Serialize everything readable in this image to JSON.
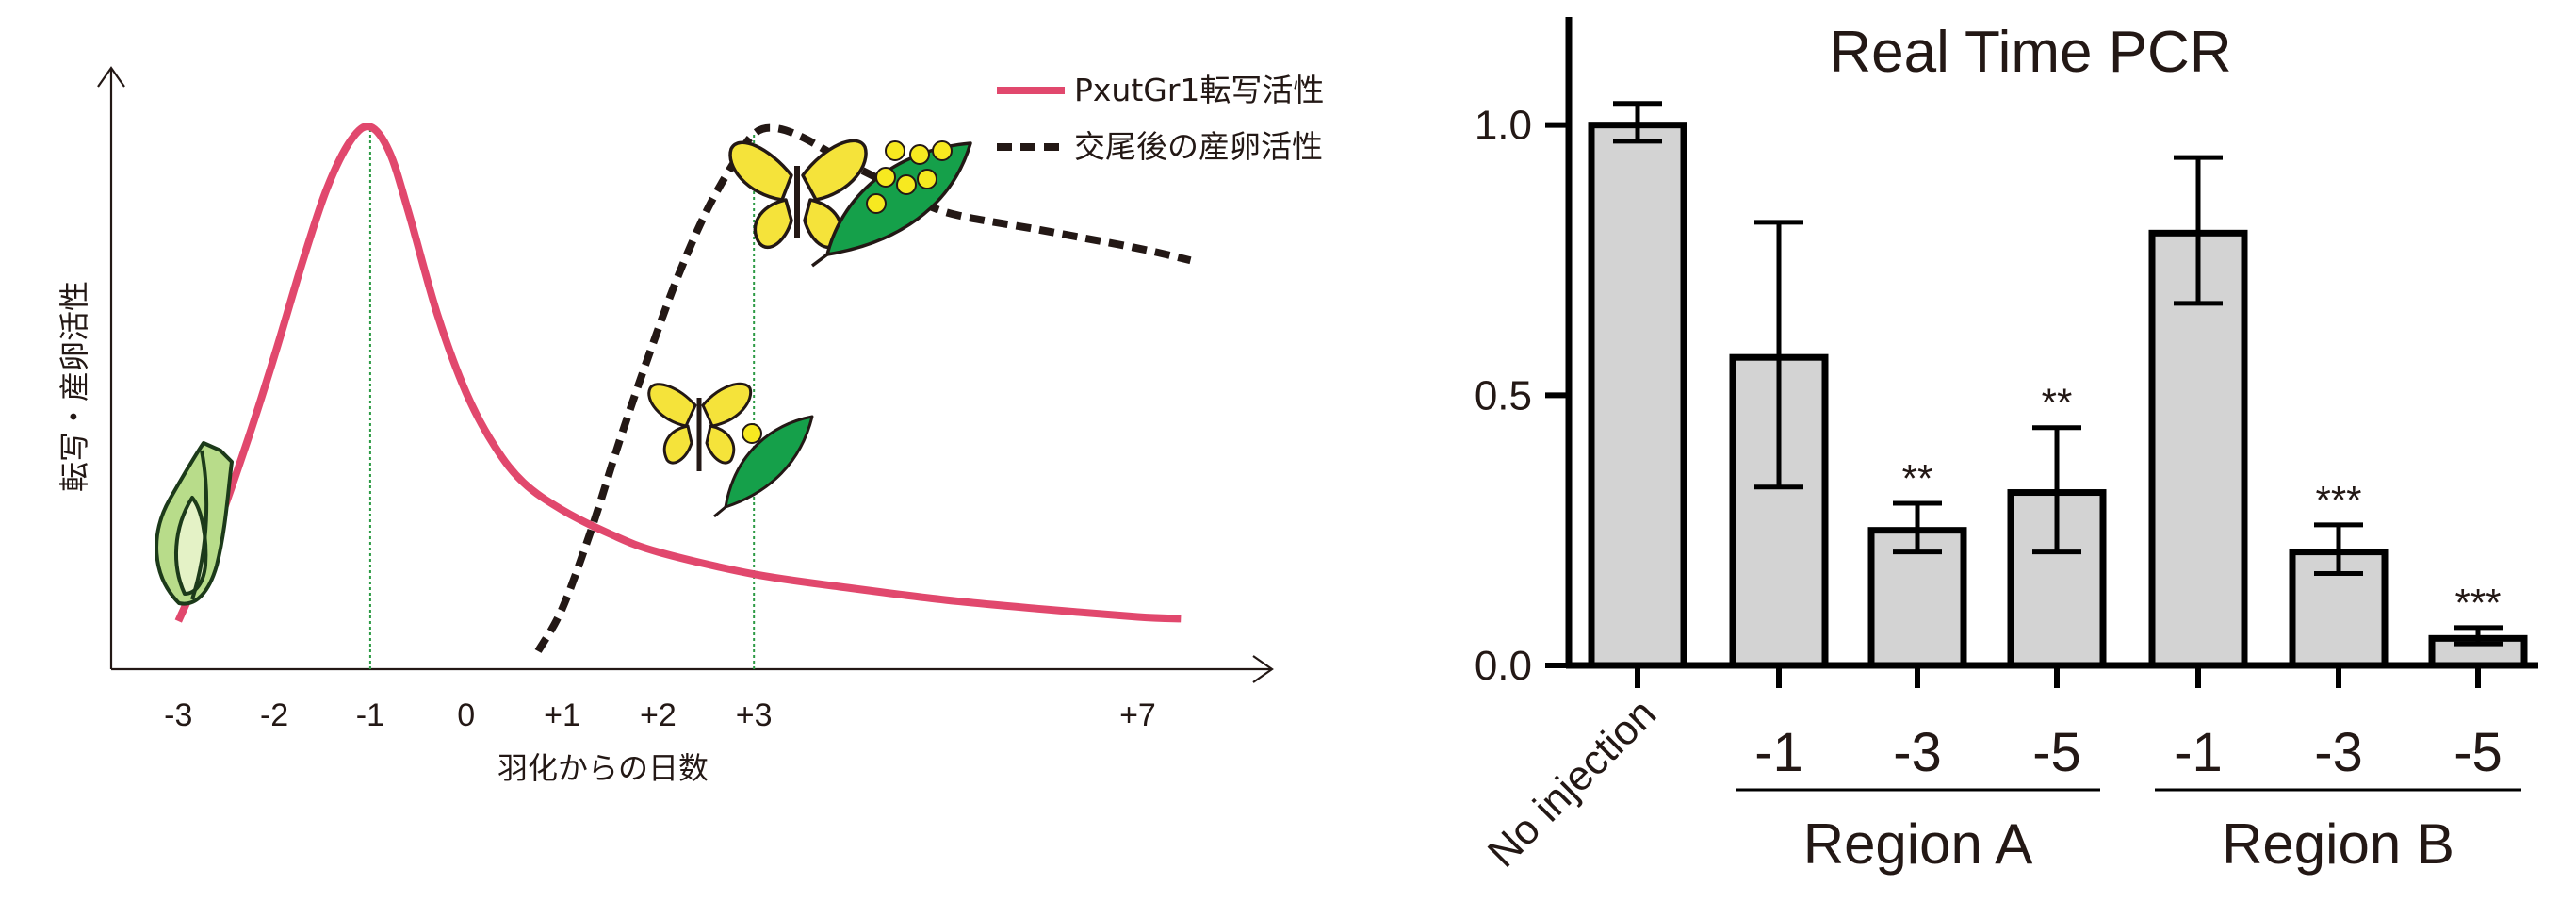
{
  "chart_data": [
    {
      "type": "line",
      "title": "",
      "xlabel": "羽化からの日数",
      "ylabel": "転写・産卵活性",
      "x_ticks": [
        "-3",
        "-2",
        "-1",
        "0",
        "+1",
        "+2",
        "+3",
        "+7"
      ],
      "x_tick_values": [
        -3,
        -2,
        -1,
        0,
        1,
        2,
        3,
        7
      ],
      "y_ticks": [],
      "xlim": [
        -3.7,
        8.4
      ],
      "ylim": [
        0,
        10
      ],
      "legend_position": "top-right",
      "series": [
        {
          "name": "PxutGr1転写活性",
          "style": "solid",
          "color": "#e1486d",
          "points": [
            [
              -3.0,
              0.8
            ],
            [
              -2.7,
              1.9
            ],
            [
              -2.3,
              3.7
            ],
            [
              -2.0,
              5.2
            ],
            [
              -1.7,
              6.8
            ],
            [
              -1.45,
              8.0
            ],
            [
              -1.2,
              8.8
            ],
            [
              -1.0,
              9.02
            ],
            [
              -0.8,
              8.6
            ],
            [
              -0.6,
              7.6
            ],
            [
              -0.3,
              5.9
            ],
            [
              0.0,
              4.6
            ],
            [
              0.3,
              3.7
            ],
            [
              0.6,
              3.1
            ],
            [
              1.0,
              2.65
            ],
            [
              1.5,
              2.25
            ],
            [
              2.0,
              1.95
            ],
            [
              3.0,
              1.58
            ],
            [
              4.0,
              1.35
            ],
            [
              5.0,
              1.15
            ],
            [
              6.0,
              1.0
            ],
            [
              7.0,
              0.87
            ],
            [
              7.45,
              0.84
            ]
          ]
        },
        {
          "name": "交尾後の産卵活性",
          "style": "dashed",
          "color": "#231815",
          "points": [
            [
              0.75,
              0.3
            ],
            [
              1.0,
              1.0
            ],
            [
              1.3,
              2.3
            ],
            [
              1.6,
              3.8
            ],
            [
              1.9,
              5.2
            ],
            [
              2.2,
              6.5
            ],
            [
              2.5,
              7.6
            ],
            [
              2.8,
              8.45
            ],
            [
              3.0,
              8.9
            ],
            [
              3.2,
              9.0
            ],
            [
              3.5,
              8.85
            ],
            [
              4.0,
              8.4
            ],
            [
              4.5,
              8.0
            ],
            [
              5.0,
              7.6
            ],
            [
              6.0,
              7.3
            ],
            [
              7.0,
              7.0
            ],
            [
              7.55,
              6.8
            ]
          ]
        }
      ],
      "reference_lines_x": [
        -1,
        3
      ],
      "reference_line_color": "#2c9a44",
      "annotations": [
        "pupa-illustration",
        "butterfly-on-leaf-with-one-egg",
        "butterfly-on-leaf-with-many-eggs"
      ]
    },
    {
      "type": "bar",
      "title": "Real Time PCR",
      "xlabel": "",
      "ylabel": "",
      "categories": [
        "No injection",
        "-1",
        "-3",
        "-5",
        "-1",
        "-3",
        "-5"
      ],
      "values": [
        1.0,
        0.57,
        0.25,
        0.32,
        0.8,
        0.21,
        0.05
      ],
      "error_low": [
        0.97,
        0.33,
        0.21,
        0.21,
        0.67,
        0.17,
        0.04
      ],
      "error_high": [
        1.04,
        0.82,
        0.3,
        0.44,
        0.94,
        0.26,
        0.07
      ],
      "significance": [
        "",
        "",
        "**",
        "**",
        "",
        "***",
        "***"
      ],
      "groups": [
        {
          "label": "Region A",
          "categories": [
            1,
            2,
            3
          ]
        },
        {
          "label": "Region B",
          "categories": [
            4,
            5,
            6
          ]
        }
      ],
      "y_ticks": [
        "0.0",
        "0.5",
        "1.0"
      ],
      "y_tick_values": [
        0.0,
        0.5,
        1.0
      ],
      "ylim": [
        0.0,
        1.2
      ],
      "grid": false,
      "bar_color": "#d3d3d3",
      "edge_color": "#000000"
    }
  ]
}
